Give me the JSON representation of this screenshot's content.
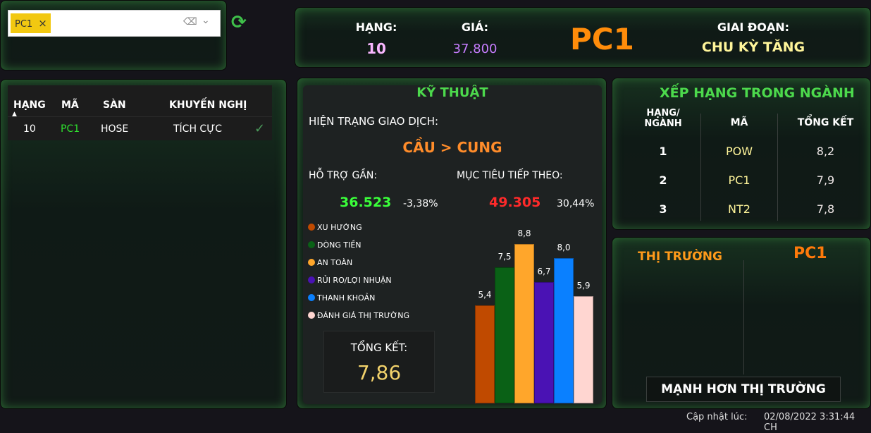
{
  "filter": {
    "chip": "PC1",
    "chip_remove": "×"
  },
  "list": {
    "headers": [
      "HẠNG",
      "MÃ",
      "SÀN",
      "KHUYẾN NGHỊ"
    ],
    "rows": [
      {
        "rank": "10",
        "code": "PC1",
        "exchange": "HOSE",
        "recommendation": "TÍCH CỰC"
      }
    ]
  },
  "header": {
    "rank_label": "HẠNG:",
    "rank": "10",
    "price_label": "GIÁ:",
    "price": "37.800",
    "ticker": "PC1",
    "phase_label": "GIAI ĐOẠN:",
    "phase": "CHU KỲ TĂNG"
  },
  "technical": {
    "title": "KỸ THUẬT",
    "status_label": "HIỆN TRẠNG GIAO DỊCH:",
    "status": "CẦU > CUNG",
    "support_label": "HỖ TRỢ GẦN:",
    "support": "36.523",
    "support_pct": "-3,38%",
    "target_label": "MỤC TIÊU TIẾP THEO:",
    "target": "49.305",
    "target_pct": "30,44%",
    "summary_label": "TỔNG KẾT:",
    "summary": "7,86"
  },
  "chart_data": {
    "type": "bar",
    "legend_position": "left",
    "series": [
      {
        "name": "XU HƯỚNG",
        "value": 5.4,
        "label": "5,4",
        "color": "#c04a00"
      },
      {
        "name": "DÒNG TIỀN",
        "value": 7.5,
        "label": "7,5",
        "color": "#0a6116"
      },
      {
        "name": "AN TOÀN",
        "value": 8.8,
        "label": "8,8",
        "color": "#ffa62b"
      },
      {
        "name": "RỦI RO/LỢI NHUẬN",
        "value": 6.7,
        "label": "6,7",
        "color": "#4a12b4"
      },
      {
        "name": "THANH KHOẢN",
        "value": 8.0,
        "label": "8,0",
        "color": "#0a80ff"
      },
      {
        "name": "ĐÁNH GIÁ THỊ TRƯỜNG",
        "value": 5.9,
        "label": "5,9",
        "color": "#ffd6d1"
      }
    ]
  },
  "industry": {
    "title": "XẾP HẠNG TRONG NGÀNH",
    "headers": [
      "HẠNG/\nNGÀNH",
      "MÃ",
      "TỔNG KẾT"
    ],
    "rows": [
      {
        "rank": "1",
        "code": "POW",
        "score": "8,2"
      },
      {
        "rank": "2",
        "code": "PC1",
        "score": "7,9"
      },
      {
        "rank": "3",
        "code": "NT2",
        "score": "7,8"
      }
    ]
  },
  "market": {
    "title": "THỊ TRƯỜNG",
    "ticker": "PC1",
    "verdict": "MẠNH HƠN THỊ TRƯỜNG"
  },
  "footer": {
    "updated_label": "Cập nhật lúc:",
    "updated": "02/08/2022 3:31:44 CH"
  }
}
